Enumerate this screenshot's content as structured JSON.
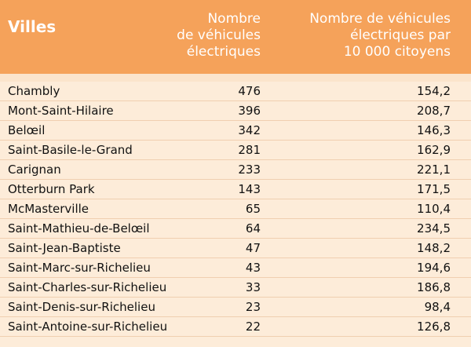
{
  "header": {
    "city": "Villes",
    "count_line1": "Nombre",
    "count_line2": "de véhicules",
    "count_line3": "électriques",
    "rate_line1": "Nombre de véhicules",
    "rate_line2": "électriques par",
    "rate_line3": "10 000 citoyens"
  },
  "rows": [
    {
      "city": "Chambly",
      "count": "476",
      "rate": "154,2"
    },
    {
      "city": "Mont-Saint-Hilaire",
      "count": "396",
      "rate": "208,7"
    },
    {
      "city": "Belœil",
      "count": "342",
      "rate": "146,3"
    },
    {
      "city": "Saint-Basile-le-Grand",
      "count": "281",
      "rate": "162,9"
    },
    {
      "city": "Carignan",
      "count": "233",
      "rate": "221,1"
    },
    {
      "city": "Otterburn Park",
      "count": "143",
      "rate": "171,5"
    },
    {
      "city": "McMasterville",
      "count": "65",
      "rate": "110,4"
    },
    {
      "city": "Saint-Mathieu-de-Belœil",
      "count": "64",
      "rate": "234,5"
    },
    {
      "city": "Saint-Jean-Baptiste",
      "count": "47",
      "rate": "148,2"
    },
    {
      "city": "Saint-Marc-sur-Richelieu",
      "count": "43",
      "rate": "194,6"
    },
    {
      "city": "Saint-Charles-sur-Richelieu",
      "count": "33",
      "rate": "186,8"
    },
    {
      "city": "Saint-Denis-sur-Richelieu",
      "count": "23",
      "rate": "98,4"
    },
    {
      "city": "Saint-Antoine-sur-Richelieu",
      "count": "22",
      "rate": "126,8"
    }
  ],
  "colors": {
    "header_bg": "#f5a25a",
    "row_bg": "#fdecd9",
    "header_text": "#ffffff"
  }
}
